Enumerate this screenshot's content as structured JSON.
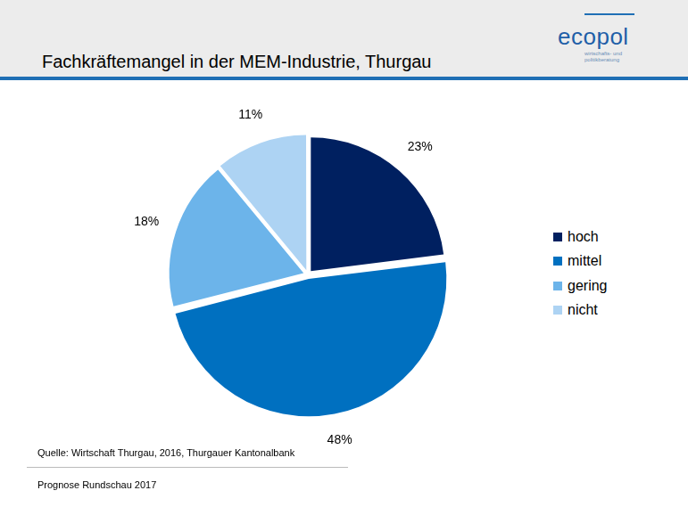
{
  "chart_data": {
    "type": "pie",
    "title": "Fachkräftemangel in der MEM-Industrie, Thurgau",
    "categories": [
      "hoch",
      "mittel",
      "gering",
      "nicht"
    ],
    "values": [
      23,
      48,
      18,
      11
    ],
    "value_labels": [
      "23%",
      "48%",
      "18%",
      "11%"
    ],
    "colors": [
      "#002060",
      "#0070c0",
      "#6cb4ea",
      "#add3f3"
    ],
    "data_labels": true,
    "legend": "right"
  },
  "logo": {
    "name": "ecopol",
    "subtitle": "wirtschafts- und politikberatung"
  },
  "source": "Quelle: Wirtschaft Thurgau, 2016, Thurgauer Kantonalbank",
  "footer": "Prognose Rundschau 2017"
}
